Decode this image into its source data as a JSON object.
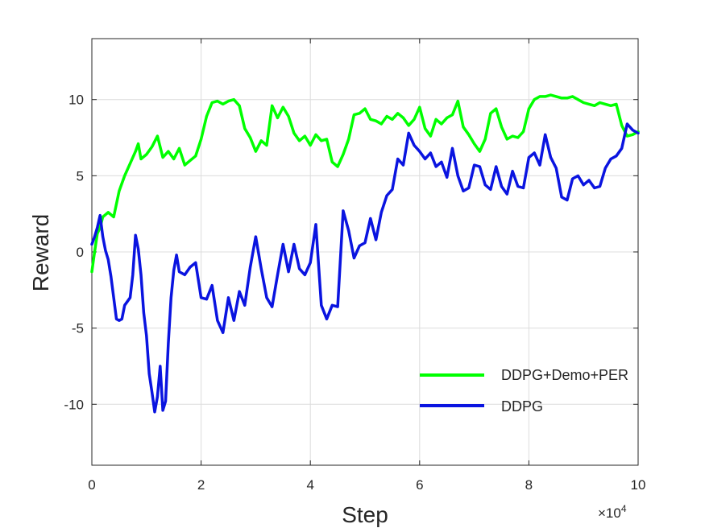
{
  "chart_data": {
    "type": "line",
    "xlabel": "Step",
    "ylabel": "Reward",
    "x_multiplier": "×10",
    "x_multiplier_exp": "4",
    "xlim": [
      0,
      100000
    ],
    "ylim": [
      -14,
      14
    ],
    "xticks": [
      0,
      20000,
      40000,
      60000,
      80000,
      100000
    ],
    "xtick_labels": [
      "0",
      "2",
      "4",
      "6",
      "8",
      "10"
    ],
    "yticks": [
      -10,
      -5,
      0,
      5,
      10
    ],
    "ytick_labels": [
      "-10",
      "-5",
      "0",
      "5",
      "10"
    ],
    "grid": true,
    "legend_position": "lower-right",
    "series": [
      {
        "name": "DDPG+Demo+PER",
        "color": "#00ff00",
        "x": [
          0,
          500,
          1000,
          1500,
          2000,
          3000,
          4000,
          5000,
          6000,
          7000,
          8000,
          8500,
          9000,
          10000,
          11000,
          12000,
          13000,
          14000,
          15000,
          16000,
          17000,
          18000,
          19000,
          20000,
          21000,
          22000,
          23000,
          24000,
          25000,
          26000,
          27000,
          28000,
          29000,
          30000,
          31000,
          32000,
          33000,
          34000,
          35000,
          36000,
          37000,
          38000,
          39000,
          40000,
          41000,
          42000,
          43000,
          44000,
          45000,
          46000,
          47000,
          48000,
          49000,
          50000,
          51000,
          52000,
          53000,
          54000,
          55000,
          56000,
          57000,
          58000,
          59000,
          60000,
          61000,
          62000,
          63000,
          64000,
          65000,
          66000,
          67000,
          68000,
          69000,
          70000,
          71000,
          72000,
          73000,
          74000,
          75000,
          76000,
          77000,
          78000,
          79000,
          80000,
          81000,
          82000,
          83000,
          84000,
          85000,
          86000,
          87000,
          88000,
          89000,
          90000,
          91000,
          92000,
          93000,
          94000,
          95000,
          96000,
          97000,
          98000,
          99000,
          100000
        ],
        "values": [
          -1.3,
          0,
          1.2,
          1.6,
          2.3,
          2.6,
          2.3,
          4.0,
          5.0,
          5.8,
          6.6,
          7.1,
          6.1,
          6.4,
          6.9,
          7.6,
          6.2,
          6.6,
          6.1,
          6.8,
          5.7,
          6.0,
          6.3,
          7.4,
          8.9,
          9.8,
          9.9,
          9.7,
          9.9,
          10.0,
          9.6,
          8.1,
          7.5,
          6.6,
          7.3,
          7.0,
          9.6,
          8.8,
          9.5,
          8.9,
          7.8,
          7.3,
          7.6,
          7.0,
          7.7,
          7.3,
          7.4,
          5.9,
          5.6,
          6.4,
          7.4,
          9.0,
          9.1,
          9.4,
          8.7,
          8.6,
          8.4,
          8.9,
          8.7,
          9.1,
          8.8,
          8.3,
          8.7,
          9.5,
          8.1,
          7.6,
          8.7,
          8.4,
          8.8,
          9.0,
          9.9,
          8.2,
          7.7,
          7.1,
          6.6,
          7.4,
          9.1,
          9.4,
          8.2,
          7.4,
          7.6,
          7.5,
          7.9,
          9.4,
          10.0,
          10.2,
          10.2,
          10.3,
          10.2,
          10.1,
          10.1,
          10.2,
          10.0,
          9.8,
          9.7,
          9.6,
          9.8,
          9.7,
          9.6,
          9.7,
          8.3,
          7.6,
          7.7,
          7.9
        ]
      },
      {
        "name": "DDPG",
        "color": "#0a14e0",
        "x": [
          0,
          500,
          1000,
          1500,
          2000,
          2500,
          3000,
          3500,
          4000,
          4500,
          5000,
          5500,
          6000,
          7000,
          7500,
          8000,
          8500,
          9000,
          9500,
          10000,
          10500,
          11000,
          11500,
          12000,
          12500,
          13000,
          13500,
          14000,
          14500,
          15000,
          15500,
          16000,
          17000,
          18000,
          19000,
          20000,
          21000,
          22000,
          23000,
          24000,
          25000,
          26000,
          27000,
          28000,
          29000,
          30000,
          31000,
          32000,
          33000,
          34000,
          35000,
          36000,
          37000,
          38000,
          39000,
          40000,
          41000,
          42000,
          43000,
          44000,
          45000,
          46000,
          47000,
          48000,
          49000,
          50000,
          51000,
          52000,
          53000,
          54000,
          55000,
          56000,
          57000,
          58000,
          59000,
          60000,
          61000,
          62000,
          63000,
          64000,
          65000,
          66000,
          67000,
          68000,
          69000,
          70000,
          71000,
          72000,
          73000,
          74000,
          75000,
          76000,
          77000,
          78000,
          79000,
          80000,
          81000,
          82000,
          83000,
          84000,
          85000,
          86000,
          87000,
          88000,
          89000,
          90000,
          91000,
          92000,
          93000,
          94000,
          95000,
          96000,
          97000,
          98000,
          99000,
          100000
        ],
        "values": [
          0.5,
          1.0,
          1.6,
          2.4,
          1.0,
          0.1,
          -0.5,
          -1.6,
          -3.0,
          -4.4,
          -4.5,
          -4.4,
          -3.5,
          -3.0,
          -1.5,
          1.1,
          0.2,
          -1.5,
          -4.0,
          -5.5,
          -8.0,
          -9.2,
          -10.5,
          -9.5,
          -7.5,
          -10.4,
          -9.8,
          -6.0,
          -3.0,
          -1.2,
          -0.2,
          -1.3,
          -1.5,
          -1.0,
          -0.7,
          -3.0,
          -3.1,
          -2.2,
          -4.5,
          -5.3,
          -3.0,
          -4.5,
          -2.6,
          -3.5,
          -1.0,
          1.0,
          -1.1,
          -3.0,
          -3.6,
          -1.5,
          0.5,
          -1.3,
          0.5,
          -1.1,
          -1.5,
          -0.7,
          1.8,
          -3.5,
          -4.4,
          -3.5,
          -3.6,
          2.7,
          1.4,
          -0.4,
          0.4,
          0.6,
          2.2,
          0.8,
          2.6,
          3.7,
          4.1,
          6.1,
          5.7,
          7.8,
          7.0,
          6.6,
          6.1,
          6.5,
          5.6,
          5.9,
          4.9,
          6.8,
          5.0,
          4.0,
          4.2,
          5.7,
          5.6,
          4.4,
          4.1,
          5.6,
          4.3,
          3.8,
          5.3,
          4.3,
          4.2,
          6.2,
          6.5,
          5.7,
          7.7,
          6.2,
          5.5,
          3.6,
          3.4,
          4.8,
          5.0,
          4.4,
          4.7,
          4.2,
          4.3,
          5.5,
          6.1,
          6.3,
          6.8,
          8.4,
          8.0,
          7.8
        ]
      }
    ]
  }
}
